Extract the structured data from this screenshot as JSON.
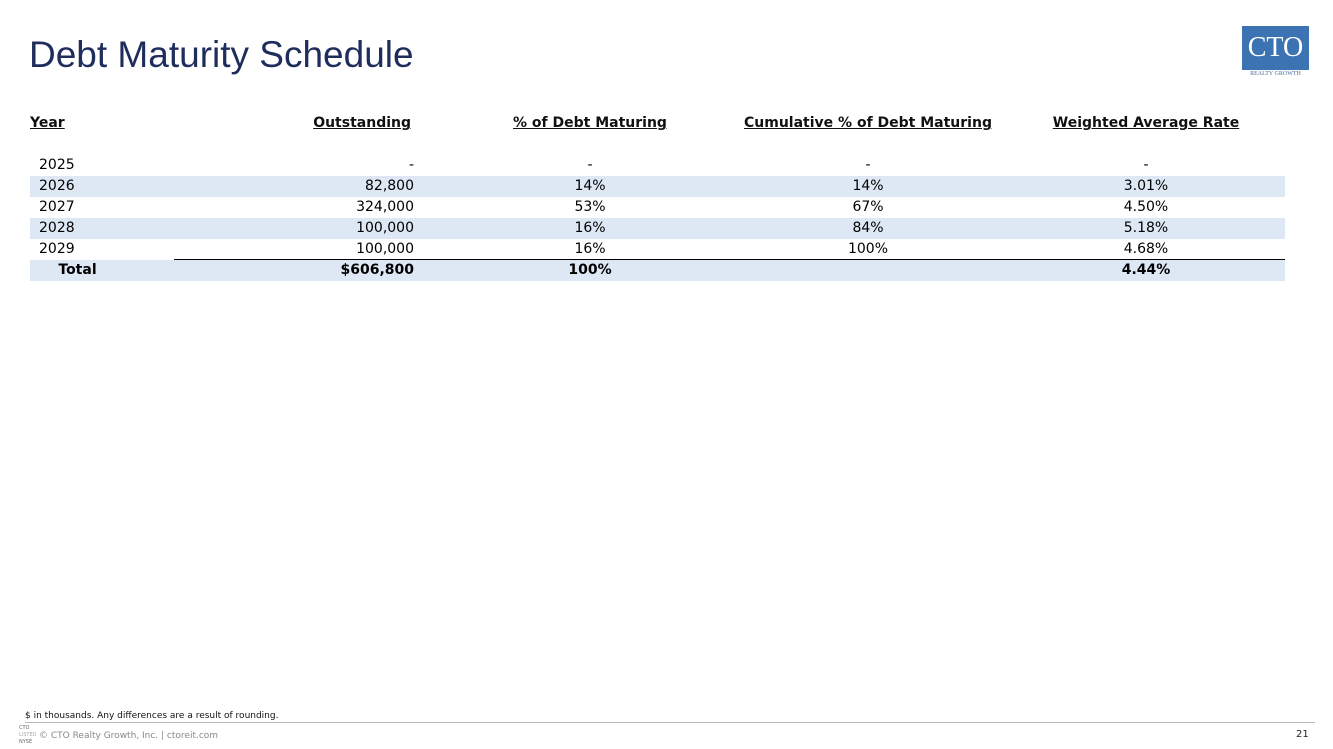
{
  "header": {
    "title": "Debt Maturity Schedule",
    "logo": {
      "name": "CTO",
      "tagline": "REALTY GROWTH"
    }
  },
  "table": {
    "columns": [
      "Year",
      "Outstanding",
      "% of Debt Maturing",
      "Cumulative % of Debt Maturing",
      "Weighted Average Rate"
    ],
    "rows": [
      [
        "2025",
        "-",
        "-",
        "-",
        "-"
      ],
      [
        "2026",
        "82,800",
        "14%",
        "14%",
        "3.01%"
      ],
      [
        "2027",
        "324,000",
        "53%",
        "67%",
        "4.50%"
      ],
      [
        "2028",
        "100,000",
        "16%",
        "84%",
        "5.18%"
      ],
      [
        "2029",
        "100,000",
        "16%",
        "100%",
        "4.68%"
      ]
    ],
    "total": [
      "Total",
      "$606,800",
      "100%",
      "",
      "4.44%"
    ]
  },
  "footnote": "$ in thousands. Any differences are a result of rounding.",
  "footer": {
    "badge": [
      "CTO",
      "LISTED",
      "NYSE"
    ],
    "copyright": "© CTO Realty Growth, Inc. | ctoreit.com",
    "page": "21"
  }
}
